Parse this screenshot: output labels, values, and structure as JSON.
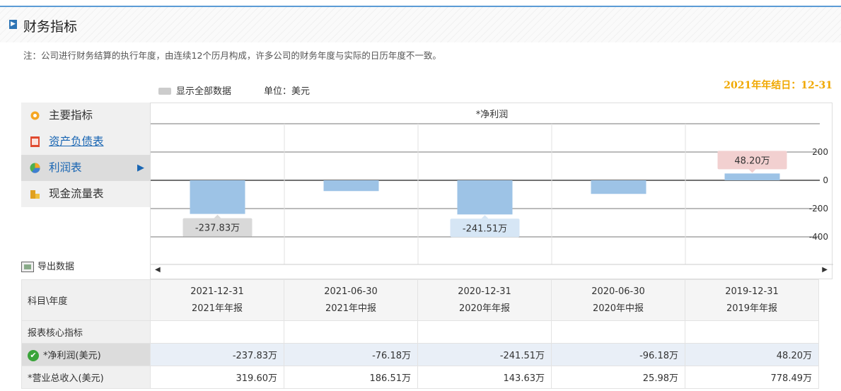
{
  "header": {
    "title": "财务指标"
  },
  "note": "注：公司进行财务结算的执行年度，由连续12个历月构成，许多公司的财务年度与实际的日历年度不一致。",
  "year_end": "2021年年结日：12-31",
  "toolbar": {
    "show_all": "显示全部数据",
    "unit": "单位：美元"
  },
  "menu": [
    {
      "label": "主要指标",
      "icon": "gear-icon"
    },
    {
      "label": "资产负债表",
      "icon": "document-icon"
    },
    {
      "label": "利润表",
      "icon": "pie-chart-icon",
      "active": true
    },
    {
      "label": "现金流量表",
      "icon": "coins-icon"
    }
  ],
  "export_label": "导出数据",
  "chart_data": {
    "type": "bar",
    "title": "*净利润",
    "categories": [
      "2021-12-31",
      "2021-06-30",
      "2020-12-31",
      "2020-06-30",
      "2019-12-31"
    ],
    "values": [
      -237.83,
      -76.18,
      -241.51,
      -96.18,
      48.2
    ],
    "labels": [
      "-237.83万",
      "",
      "-241.51万",
      "",
      "48.20万"
    ],
    "yticks": [
      "200",
      "0",
      "-200",
      "-400"
    ],
    "ylim": [
      -400,
      200
    ],
    "bar_color": "#9dc3e6",
    "label_negative_dark_bg": "#d9d9d9",
    "label_negative_light_bg": "#d6e6f5",
    "label_positive_bg": "#f2d0d0"
  },
  "table": {
    "corner": "科目\\年度",
    "columns": [
      {
        "date": "2021-12-31",
        "period": "2021年年报"
      },
      {
        "date": "2021-06-30",
        "period": "2021年中报"
      },
      {
        "date": "2020-12-31",
        "period": "2020年年报"
      },
      {
        "date": "2020-06-30",
        "period": "2020年中报"
      },
      {
        "date": "2019-12-31",
        "period": "2019年年报"
      }
    ],
    "section": "报表核心指标",
    "rows": [
      {
        "label": "*净利润(美元)",
        "values": [
          "-237.83万",
          "-76.18万",
          "-241.51万",
          "-96.18万",
          "48.20万"
        ]
      },
      {
        "label": "*营业总收入(美元)",
        "values": [
          "319.60万",
          "186.51万",
          "143.63万",
          "25.98万",
          "778.49万"
        ]
      }
    ]
  }
}
